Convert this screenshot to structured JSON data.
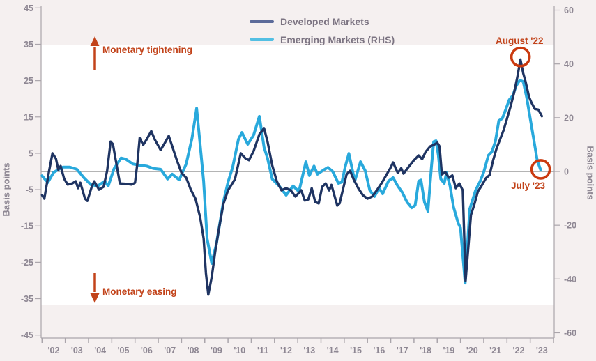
{
  "colors": {
    "page_background": "#f5f0f0",
    "plot_background": "#ffffff",
    "axis_line": "#aaa5ab",
    "axis_text": "#8e8793",
    "legend_text": "#7c7482",
    "zero_line": "#6a6a6a",
    "developed_markets": "#1f3462",
    "emerging_markets": "#29a9dc",
    "annotation": "#c2431a",
    "annotation_circle": "#ca3a10"
  },
  "legend": {
    "items": [
      {
        "label": "Developed Markets",
        "swatch_color": "#5c6b9a"
      },
      {
        "label": "Emerging Markets (RHS)",
        "swatch_color": "#53bfe3"
      }
    ]
  },
  "chart_data": {
    "type": "line",
    "title": "",
    "x_axis": {
      "labels": [
        "'02",
        "'03",
        "'04",
        "'05",
        "'06",
        "'07",
        "'08",
        "'09",
        "'10",
        "'11",
        "'12",
        "'13",
        "'14",
        "'15",
        "'16",
        "'17",
        "'18",
        "'19",
        "'20",
        "'21",
        "'22",
        "'23"
      ],
      "range": [
        2002,
        2024
      ]
    },
    "left_axis": {
      "title": "Basis points",
      "ticks": [
        45,
        35,
        25,
        15,
        5,
        -5,
        -15,
        -25,
        -35,
        -45
      ],
      "range": [
        -45,
        45
      ]
    },
    "right_axis": {
      "title": "Basis points",
      "ticks": [
        60,
        40,
        20,
        0,
        -20,
        -40,
        -60
      ],
      "range": [
        -60,
        60
      ]
    },
    "zero_line": true,
    "legend_position": "top-center",
    "series": [
      {
        "name": "Emerging Markets (RHS)",
        "axis": "right",
        "color": "#29a9dc",
        "width": 4,
        "points": [
          [
            2002.0,
            -1.6
          ],
          [
            2002.25,
            -4.1
          ],
          [
            2002.5,
            -0.3
          ],
          [
            2002.9,
            1.6
          ],
          [
            2003.2,
            1.6
          ],
          [
            2003.5,
            0.8
          ],
          [
            2003.8,
            -2.3
          ],
          [
            2004.1,
            -4.9
          ],
          [
            2004.4,
            -5.4
          ],
          [
            2004.7,
            -3.6
          ],
          [
            2004.85,
            -5.4
          ],
          [
            2005.1,
            1.1
          ],
          [
            2005.4,
            5.0
          ],
          [
            2005.6,
            4.6
          ],
          [
            2005.9,
            2.8
          ],
          [
            2006.2,
            2.3
          ],
          [
            2006.5,
            2.0
          ],
          [
            2006.8,
            1.1
          ],
          [
            2007.1,
            0.8
          ],
          [
            2007.4,
            -2.8
          ],
          [
            2007.6,
            -1.0
          ],
          [
            2007.9,
            -3.1
          ],
          [
            2008.2,
            2.8
          ],
          [
            2008.45,
            12.3
          ],
          [
            2008.65,
            23.5
          ],
          [
            2008.8,
            10.0
          ],
          [
            2008.95,
            -3.6
          ],
          [
            2009.1,
            -25.0
          ],
          [
            2009.3,
            -34.2
          ],
          [
            2009.5,
            -27.0
          ],
          [
            2009.8,
            -11.4
          ],
          [
            2010.0,
            -4.0
          ],
          [
            2010.2,
            1.6
          ],
          [
            2010.45,
            12.0
          ],
          [
            2010.6,
            14.5
          ],
          [
            2010.85,
            10.1
          ],
          [
            2011.1,
            13.5
          ],
          [
            2011.35,
            20.5
          ],
          [
            2011.55,
            9.0
          ],
          [
            2011.7,
            4.9
          ],
          [
            2011.9,
            -2.8
          ],
          [
            2012.2,
            -5.4
          ],
          [
            2012.5,
            -8.8
          ],
          [
            2012.8,
            -5.4
          ],
          [
            2013.05,
            -7.5
          ],
          [
            2013.2,
            -2.0
          ],
          [
            2013.35,
            3.6
          ],
          [
            2013.5,
            -1.5
          ],
          [
            2013.7,
            2.0
          ],
          [
            2013.85,
            -1.0
          ],
          [
            2014.1,
            0.5
          ],
          [
            2014.3,
            1.5
          ],
          [
            2014.5,
            0.0
          ],
          [
            2014.75,
            -4.4
          ],
          [
            2014.9,
            -4.0
          ],
          [
            2015.05,
            2.0
          ],
          [
            2015.2,
            6.7
          ],
          [
            2015.45,
            -3.6
          ],
          [
            2015.7,
            3.6
          ],
          [
            2015.9,
            0.3
          ],
          [
            2016.1,
            -7.0
          ],
          [
            2016.3,
            -9.3
          ],
          [
            2016.5,
            -6.2
          ],
          [
            2016.65,
            -8.3
          ],
          [
            2016.9,
            -3.6
          ],
          [
            2017.1,
            -2.3
          ],
          [
            2017.3,
            -5.4
          ],
          [
            2017.5,
            -7.8
          ],
          [
            2017.7,
            -11.4
          ],
          [
            2017.9,
            -13.5
          ],
          [
            2018.05,
            -12.6
          ],
          [
            2018.2,
            -3.6
          ],
          [
            2018.3,
            -3.2
          ],
          [
            2018.45,
            -11.4
          ],
          [
            2018.6,
            -14.8
          ],
          [
            2018.75,
            1.6
          ],
          [
            2018.85,
            11.1
          ],
          [
            2018.95,
            11.4
          ],
          [
            2019.05,
            6.0
          ],
          [
            2019.15,
            -2.8
          ],
          [
            2019.3,
            -4.4
          ],
          [
            2019.4,
            -0.5
          ],
          [
            2019.55,
            -5.4
          ],
          [
            2019.7,
            -13.2
          ],
          [
            2019.9,
            -19.2
          ],
          [
            2020.0,
            -21.0
          ],
          [
            2020.2,
            -41.5
          ],
          [
            2020.4,
            -14.0
          ],
          [
            2020.65,
            -7.0
          ],
          [
            2020.85,
            -3.6
          ],
          [
            2021.0,
            -0.3
          ],
          [
            2021.2,
            6.0
          ],
          [
            2021.35,
            7.3
          ],
          [
            2021.5,
            11.1
          ],
          [
            2021.65,
            18.9
          ],
          [
            2021.8,
            19.7
          ],
          [
            2021.95,
            23.1
          ],
          [
            2022.1,
            26.7
          ],
          [
            2022.25,
            28.2
          ],
          [
            2022.4,
            31.9
          ],
          [
            2022.55,
            33.9
          ],
          [
            2022.7,
            33.4
          ],
          [
            2022.85,
            27.5
          ],
          [
            2023.0,
            19.7
          ],
          [
            2023.15,
            11.9
          ],
          [
            2023.3,
            4.1
          ],
          [
            2023.45,
            0.5
          ]
        ]
      },
      {
        "name": "Developed Markets",
        "axis": "left",
        "color": "#1f3462",
        "width": 3.4,
        "points": [
          [
            2002.0,
            -6.5
          ],
          [
            2002.1,
            -7.5
          ],
          [
            2002.3,
            0.0
          ],
          [
            2002.45,
            5.0
          ],
          [
            2002.6,
            3.5
          ],
          [
            2002.7,
            0.5
          ],
          [
            2002.8,
            1.5
          ],
          [
            2002.95,
            -2.0
          ],
          [
            2003.1,
            -3.6
          ],
          [
            2003.3,
            -3.3
          ],
          [
            2003.45,
            -2.7
          ],
          [
            2003.55,
            -4.6
          ],
          [
            2003.65,
            -3.1
          ],
          [
            2003.85,
            -7.5
          ],
          [
            2003.95,
            -8.1
          ],
          [
            2004.15,
            -4.0
          ],
          [
            2004.25,
            -2.7
          ],
          [
            2004.45,
            -5.0
          ],
          [
            2004.65,
            -4.2
          ],
          [
            2004.8,
            0.2
          ],
          [
            2004.95,
            8.2
          ],
          [
            2005.05,
            7.5
          ],
          [
            2005.2,
            2.1
          ],
          [
            2005.35,
            -3.3
          ],
          [
            2005.6,
            -3.4
          ],
          [
            2005.85,
            -3.6
          ],
          [
            2006.0,
            -3.1
          ],
          [
            2006.1,
            2.1
          ],
          [
            2006.2,
            9.2
          ],
          [
            2006.35,
            7.3
          ],
          [
            2006.5,
            8.8
          ],
          [
            2006.7,
            11.1
          ],
          [
            2006.85,
            8.8
          ],
          [
            2007.1,
            5.9
          ],
          [
            2007.25,
            7.5
          ],
          [
            2007.45,
            9.8
          ],
          [
            2007.6,
            6.9
          ],
          [
            2007.8,
            3.1
          ],
          [
            2008.0,
            -0.4
          ],
          [
            2008.2,
            -1.7
          ],
          [
            2008.4,
            -5.0
          ],
          [
            2008.6,
            -7.5
          ],
          [
            2008.8,
            -12.6
          ],
          [
            2008.95,
            -18.4
          ],
          [
            2009.05,
            -28.0
          ],
          [
            2009.15,
            -33.9
          ],
          [
            2009.3,
            -29.0
          ],
          [
            2009.45,
            -22.0
          ],
          [
            2009.6,
            -16.1
          ],
          [
            2009.8,
            -9.0
          ],
          [
            2010.0,
            -5.2
          ],
          [
            2010.3,
            -2.1
          ],
          [
            2010.55,
            5.0
          ],
          [
            2010.75,
            3.6
          ],
          [
            2010.9,
            3.1
          ],
          [
            2011.1,
            5.6
          ],
          [
            2011.35,
            10.2
          ],
          [
            2011.55,
            11.9
          ],
          [
            2011.7,
            8.2
          ],
          [
            2011.9,
            1.7
          ],
          [
            2012.1,
            -2.7
          ],
          [
            2012.3,
            -5.2
          ],
          [
            2012.5,
            -4.6
          ],
          [
            2012.7,
            -5.2
          ],
          [
            2012.9,
            -6.9
          ],
          [
            2013.15,
            -5.2
          ],
          [
            2013.3,
            -8.0
          ],
          [
            2013.45,
            -7.7
          ],
          [
            2013.6,
            -4.6
          ],
          [
            2013.75,
            -8.4
          ],
          [
            2013.9,
            -8.8
          ],
          [
            2014.05,
            -4.2
          ],
          [
            2014.2,
            -3.3
          ],
          [
            2014.35,
            -5.2
          ],
          [
            2014.45,
            -3.7
          ],
          [
            2014.7,
            -9.4
          ],
          [
            2014.8,
            -8.8
          ],
          [
            2015.1,
            -0.8
          ],
          [
            2015.25,
            0.2
          ],
          [
            2015.4,
            -2.1
          ],
          [
            2015.6,
            -4.6
          ],
          [
            2015.8,
            -6.5
          ],
          [
            2016.0,
            -7.5
          ],
          [
            2016.2,
            -6.9
          ],
          [
            2016.4,
            -5.2
          ],
          [
            2016.6,
            -3.3
          ],
          [
            2016.8,
            -1.1
          ],
          [
            2017.0,
            1.1
          ],
          [
            2017.1,
            2.5
          ],
          [
            2017.3,
            -0.4
          ],
          [
            2017.45,
            0.9
          ],
          [
            2017.55,
            -0.6
          ],
          [
            2017.8,
            1.5
          ],
          [
            2018.0,
            3.1
          ],
          [
            2018.2,
            4.4
          ],
          [
            2018.35,
            3.4
          ],
          [
            2018.5,
            5.4
          ],
          [
            2018.7,
            6.9
          ],
          [
            2018.85,
            7.3
          ],
          [
            2019.0,
            7.9
          ],
          [
            2019.1,
            6.9
          ],
          [
            2019.2,
            -0.8
          ],
          [
            2019.35,
            -0.2
          ],
          [
            2019.5,
            -1.7
          ],
          [
            2019.65,
            -1.1
          ],
          [
            2019.8,
            -4.6
          ],
          [
            2019.95,
            -3.3
          ],
          [
            2020.1,
            -5.2
          ],
          [
            2020.22,
            -30.1
          ],
          [
            2020.45,
            -12.0
          ],
          [
            2020.6,
            -9.0
          ],
          [
            2020.75,
            -5.5
          ],
          [
            2020.9,
            -4.0
          ],
          [
            2021.1,
            -1.8
          ],
          [
            2021.25,
            -1.0
          ],
          [
            2021.4,
            3.0
          ],
          [
            2021.55,
            6.3
          ],
          [
            2021.7,
            8.8
          ],
          [
            2021.85,
            11.3
          ],
          [
            2022.0,
            14.5
          ],
          [
            2022.15,
            17.8
          ],
          [
            2022.3,
            21.5
          ],
          [
            2022.45,
            26.1
          ],
          [
            2022.58,
            30.8
          ],
          [
            2022.7,
            27.0
          ],
          [
            2022.8,
            24.7
          ],
          [
            2022.95,
            20.5
          ],
          [
            2023.05,
            19.0
          ],
          [
            2023.2,
            17.2
          ],
          [
            2023.35,
            17.0
          ],
          [
            2023.5,
            15.2
          ]
        ]
      }
    ],
    "annotations": {
      "monetary_tightening": {
        "text": "Monetary tightening",
        "arrow": "up"
      },
      "monetary_easing": {
        "text": "Monetary easing",
        "arrow": "down"
      },
      "august_22": {
        "text": "August '22",
        "point": [
          2022.58,
          31.5
        ],
        "axis": "left"
      },
      "july_23": {
        "text": "July '23",
        "point": [
          2023.45,
          0.8
        ],
        "axis": "right"
      }
    }
  }
}
